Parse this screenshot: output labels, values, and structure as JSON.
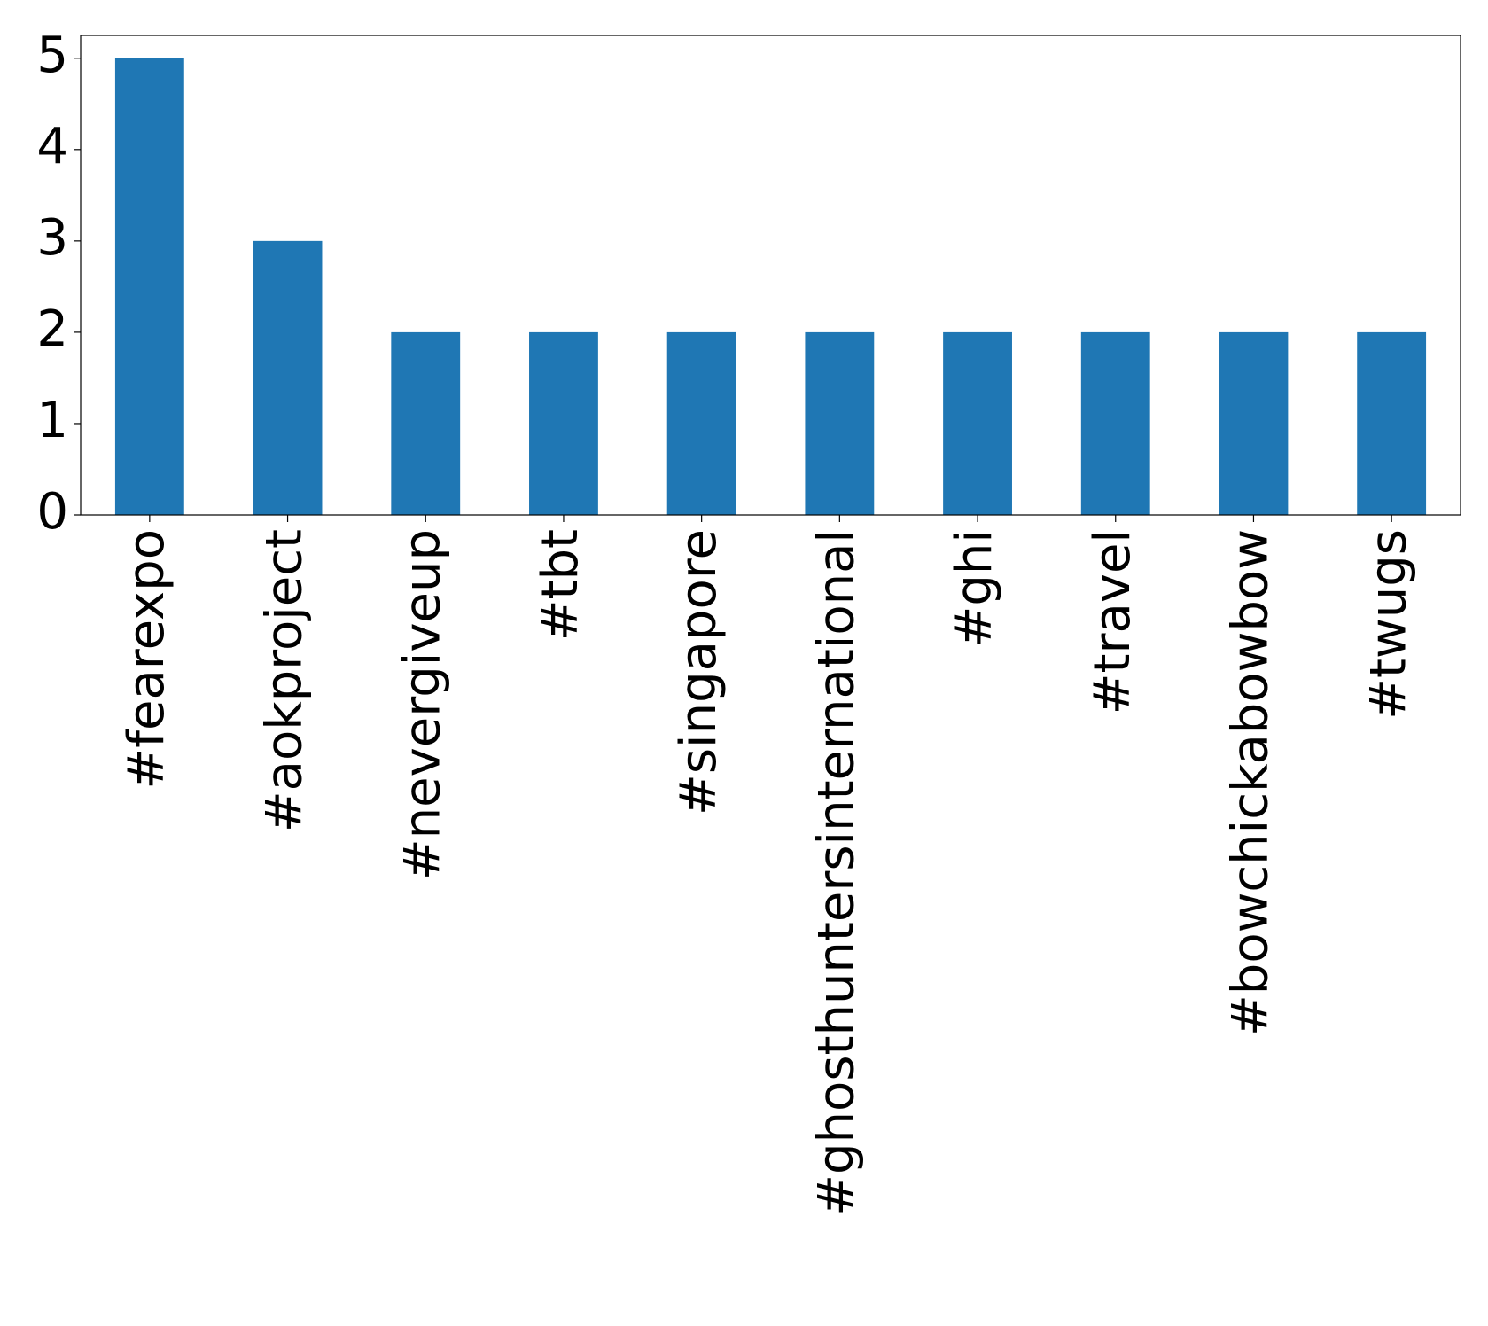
{
  "chart_data": {
    "type": "bar",
    "categories": [
      "#fearexpo",
      "#aokproject",
      "#nevergiveup",
      "#tbt",
      "#singapore",
      "#ghosthuntersinternational",
      "#ghi",
      "#travel",
      "#bowchickabowbow",
      "#twugs"
    ],
    "values": [
      5,
      3,
      2,
      2,
      2,
      2,
      2,
      2,
      2,
      2
    ],
    "color": "#1f77b4",
    "ylim": [
      0,
      5.25
    ],
    "yticks": [
      0,
      1,
      2,
      3,
      4,
      5
    ],
    "grid": false
  }
}
